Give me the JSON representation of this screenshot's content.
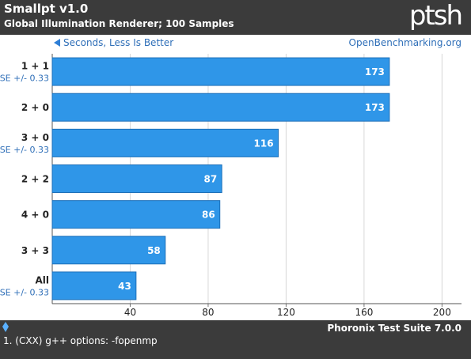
{
  "header": {
    "title": "Smallpt v1.0",
    "subtitle": "Global Illumination Renderer; 100 Samples",
    "logo": "ptsh"
  },
  "chart_data": {
    "type": "bar",
    "orientation": "horizontal",
    "direction_note": "Seconds, Less Is Better",
    "source": "OpenBenchmarking.org",
    "categories": [
      "1 + 1",
      "2 + 0",
      "3 + 0",
      "2 + 2",
      "4 + 0",
      "3 + 3",
      "All"
    ],
    "sublabels": [
      "SE +/- 0.33",
      "",
      "SE +/- 0.33",
      "",
      "",
      "",
      "SE +/- 0.33"
    ],
    "values": [
      173,
      173,
      116,
      87,
      86,
      58,
      43
    ],
    "xticks": [
      40,
      80,
      120,
      160,
      200
    ],
    "xlim": [
      0,
      210
    ],
    "bar_color": "#2f96e8",
    "bar_border": "#1c6fb8",
    "grid": true
  },
  "footer": {
    "note": "1. (CXX) g++ options: -fopenmp",
    "brand": "Phoronix Test Suite 7.0.0"
  }
}
